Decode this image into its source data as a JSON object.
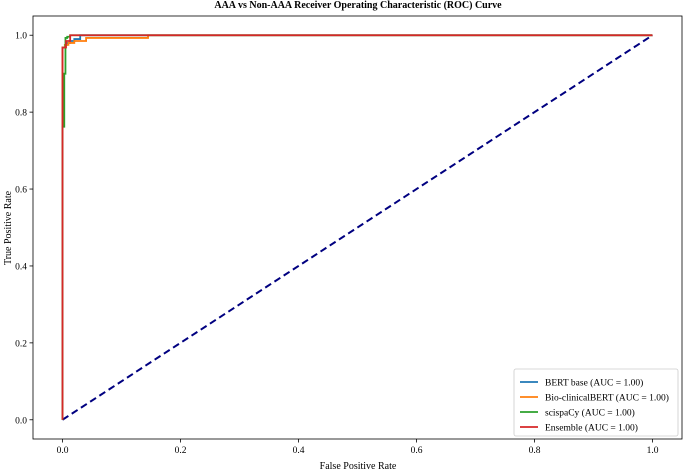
{
  "chart_data": {
    "type": "line",
    "title": "AAA vs Non-AAA Receiver Operating Characteristic (ROC) Curve",
    "xlabel": "False Positive Rate",
    "ylabel": "True Positive Rate",
    "xlim": [
      -0.05,
      1.05
    ],
    "ylim": [
      -0.05,
      1.05
    ],
    "xticks": [
      0.0,
      0.2,
      0.4,
      0.6,
      0.8,
      1.0
    ],
    "yticks": [
      0.0,
      0.2,
      0.4,
      0.6,
      0.8,
      1.0
    ],
    "xtick_labels": [
      "0.0",
      "0.2",
      "0.4",
      "0.6",
      "0.8",
      "1.0"
    ],
    "ytick_labels": [
      "0.0",
      "0.2",
      "0.4",
      "0.6",
      "0.8",
      "1.0"
    ],
    "grid": false,
    "legend_position": "bottom-right",
    "series": [
      {
        "name": "BERT base (AUC = 1.00)",
        "color": "#1f77b4",
        "x": [
          0,
          0,
          0.004,
          0.004,
          0.008,
          0.008,
          0.013,
          0.013,
          0.02,
          0.02,
          0.03,
          0.03,
          1.0
        ],
        "y": [
          0,
          0.968,
          0.968,
          0.975,
          0.975,
          0.98,
          0.98,
          0.985,
          0.985,
          0.99,
          0.99,
          1.0,
          1.0
        ]
      },
      {
        "name": "Bio-clinicalBERT (AUC = 1.00)",
        "color": "#ff7f0e",
        "x": [
          0,
          0,
          0.004,
          0.004,
          0.01,
          0.01,
          0.02,
          0.02,
          0.04,
          0.04,
          0.145,
          0.145,
          1.0
        ],
        "y": [
          0,
          0.968,
          0.968,
          0.975,
          0.975,
          0.98,
          0.98,
          0.985,
          0.985,
          0.993,
          0.993,
          1.0,
          1.0
        ]
      },
      {
        "name": "scispaCy (AUC = 1.00)",
        "color": "#2ca02c",
        "x": [
          0,
          0,
          0.003,
          0.003,
          0.005,
          0.005,
          0.008,
          0.008,
          0.013,
          0.013,
          1.0
        ],
        "y": [
          0,
          0.762,
          0.762,
          0.9,
          0.9,
          0.993,
          0.993,
          0.996,
          0.996,
          1.0,
          1.0
        ]
      },
      {
        "name": "Ensemble (AUC = 1.00)",
        "color": "#d62728",
        "x": [
          0,
          0,
          0.006,
          0.006,
          0.013,
          0.013,
          1.0
        ],
        "y": [
          0,
          0.968,
          0.968,
          0.985,
          0.985,
          1.0,
          1.0
        ]
      }
    ],
    "reference_line": {
      "x": [
        0,
        1
      ],
      "y": [
        0,
        1
      ],
      "color": "#000080",
      "style": "dashed"
    }
  }
}
